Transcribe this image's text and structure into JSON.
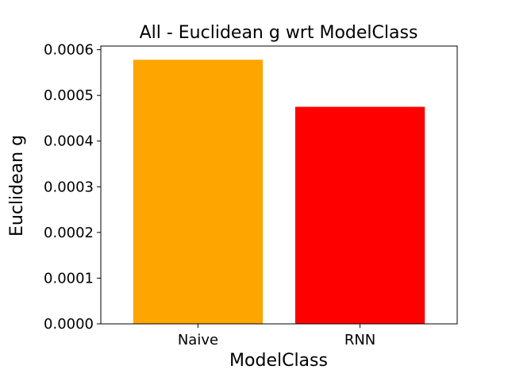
{
  "chart_data": {
    "type": "bar",
    "title": "All - Euclidean g wrt ModelClass",
    "xlabel": "ModelClass",
    "ylabel": "Euclidean g",
    "categories": [
      "Naive",
      "RNN"
    ],
    "values": [
      0.000578,
      0.000475
    ],
    "colors": [
      "#ffa500",
      "#ff0000"
    ],
    "ylim": [
      0,
      0.000608
    ],
    "yticks": [
      0.0,
      0.0001,
      0.0002,
      0.0003,
      0.0004,
      0.0005,
      0.0006
    ],
    "ytick_labels": [
      "0.0000",
      "0.0001",
      "0.0002",
      "0.0003",
      "0.0004",
      "0.0005",
      "0.0006"
    ],
    "grid": false,
    "legend": "none"
  }
}
